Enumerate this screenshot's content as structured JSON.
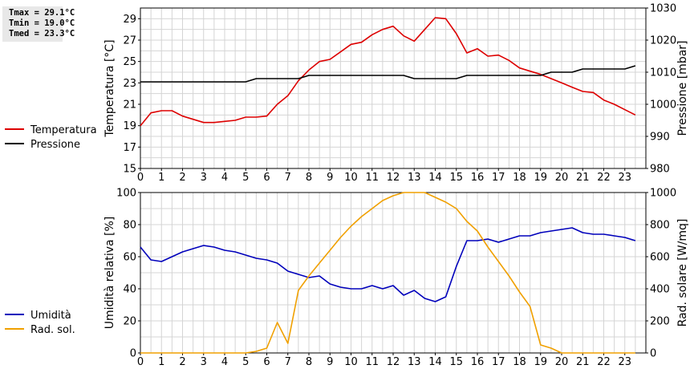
{
  "stats": {
    "tmax": "Tmax = 29.1°C",
    "tmin": "Tmin = 19.0°C",
    "tmed": "Tmed = 23.3°C"
  },
  "chart_data": [
    {
      "type": "line",
      "x": [
        0,
        0.5,
        1,
        1.5,
        2,
        2.5,
        3,
        3.5,
        4,
        4.5,
        5,
        5.5,
        6,
        6.5,
        7,
        7.5,
        8,
        8.5,
        9,
        9.5,
        10,
        10.5,
        11,
        11.5,
        12,
        12.5,
        13,
        13.5,
        14,
        14.5,
        15,
        15.5,
        16,
        16.5,
        17,
        17.5,
        18,
        18.5,
        19,
        19.5,
        20,
        20.5,
        21,
        21.5,
        22,
        22.5,
        23,
        23.5
      ],
      "xlim": [
        0,
        24
      ],
      "xticks": [
        "0",
        "1",
        "2",
        "3",
        "4",
        "5",
        "6",
        "7",
        "8",
        "9",
        "10",
        "11",
        "12",
        "13",
        "14",
        "15",
        "16",
        "17",
        "18",
        "19",
        "20",
        "21",
        "22",
        "23"
      ],
      "ylabel": "Temperatura [°C]",
      "ylim": [
        15,
        30
      ],
      "yticks": [
        "15",
        "17",
        "19",
        "21",
        "23",
        "25",
        "27",
        "29"
      ],
      "y2label": "Pressione [mbar]",
      "y2lim": [
        980,
        1030
      ],
      "y2ticks": [
        "980",
        "990",
        "1000",
        "1010",
        "1020",
        "1030"
      ],
      "grid": true,
      "series": [
        {
          "name": "Temperatura",
          "axis": "left",
          "color": "#dd0000",
          "values": [
            19.0,
            20.2,
            20.4,
            20.4,
            19.9,
            19.6,
            19.3,
            19.3,
            19.4,
            19.5,
            19.8,
            19.8,
            19.9,
            21.0,
            21.8,
            23.2,
            24.2,
            25.0,
            25.2,
            25.9,
            26.6,
            26.8,
            27.5,
            28.0,
            28.3,
            27.4,
            26.9,
            28.0,
            29.1,
            29.0,
            27.6,
            25.8,
            26.2,
            25.5,
            25.6,
            25.1,
            24.4,
            24.1,
            23.8,
            23.4,
            23.0,
            22.6,
            22.2,
            22.1,
            21.4,
            21.0,
            20.5,
            20.0
          ]
        },
        {
          "name": "Pressione",
          "axis": "right",
          "color": "#000000",
          "values": [
            1007,
            1007,
            1007,
            1007,
            1007,
            1007,
            1007,
            1007,
            1007,
            1007,
            1007,
            1008,
            1008,
            1008,
            1008,
            1008,
            1009,
            1009,
            1009,
            1009,
            1009,
            1009,
            1009,
            1009,
            1009,
            1009,
            1008,
            1008,
            1008,
            1008,
            1008,
            1009,
            1009,
            1009,
            1009,
            1009,
            1009,
            1009,
            1009,
            1010,
            1010,
            1010,
            1011,
            1011,
            1011,
            1011,
            1011,
            1012
          ]
        }
      ]
    },
    {
      "type": "line",
      "x": [
        0,
        0.5,
        1,
        1.5,
        2,
        2.5,
        3,
        3.5,
        4,
        4.5,
        5,
        5.5,
        6,
        6.5,
        7,
        7.5,
        8,
        8.5,
        9,
        9.5,
        10,
        10.5,
        11,
        11.5,
        12,
        12.5,
        13,
        13.5,
        14,
        14.5,
        15,
        15.5,
        16,
        16.5,
        17,
        17.5,
        18,
        18.5,
        19,
        19.5,
        20,
        20.5,
        21,
        21.5,
        22,
        22.5,
        23,
        23.5
      ],
      "xlim": [
        0,
        24
      ],
      "xticks": [
        "0",
        "1",
        "2",
        "3",
        "4",
        "5",
        "6",
        "7",
        "8",
        "9",
        "10",
        "11",
        "12",
        "13",
        "14",
        "15",
        "16",
        "17",
        "18",
        "19",
        "20",
        "21",
        "22",
        "23"
      ],
      "ylabel": "Umidità relativa [%]",
      "ylim": [
        0,
        100
      ],
      "yticks": [
        "0",
        "20",
        "40",
        "60",
        "80",
        "100"
      ],
      "y2label": "Rad. solare [W/mq]",
      "y2lim": [
        0,
        1000
      ],
      "y2ticks": [
        "0",
        "200",
        "400",
        "600",
        "800",
        "1000"
      ],
      "grid": true,
      "series": [
        {
          "name": "Umidità",
          "axis": "left",
          "color": "#0000bb",
          "values": [
            66,
            58,
            57,
            60,
            63,
            65,
            67,
            66,
            64,
            63,
            61,
            59,
            58,
            56,
            51,
            49,
            47,
            48,
            43,
            41,
            40,
            40,
            42,
            40,
            42,
            36,
            39,
            34,
            32,
            35,
            54,
            70,
            70,
            71,
            69,
            71,
            73,
            73,
            75,
            76,
            77,
            78,
            75,
            74,
            74,
            73,
            72,
            70
          ]
        },
        {
          "name": "Rad. sol.",
          "axis": "right",
          "color": "#f0a000",
          "values": [
            0,
            0,
            0,
            0,
            0,
            0,
            0,
            0,
            0,
            0,
            0,
            10,
            30,
            190,
            60,
            390,
            480,
            560,
            640,
            720,
            790,
            850,
            900,
            950,
            980,
            1000,
            1000,
            1000,
            970,
            940,
            900,
            820,
            760,
            660,
            570,
            480,
            380,
            290,
            50,
            30,
            0,
            0,
            0,
            0,
            0,
            0,
            0,
            0
          ]
        }
      ]
    }
  ]
}
